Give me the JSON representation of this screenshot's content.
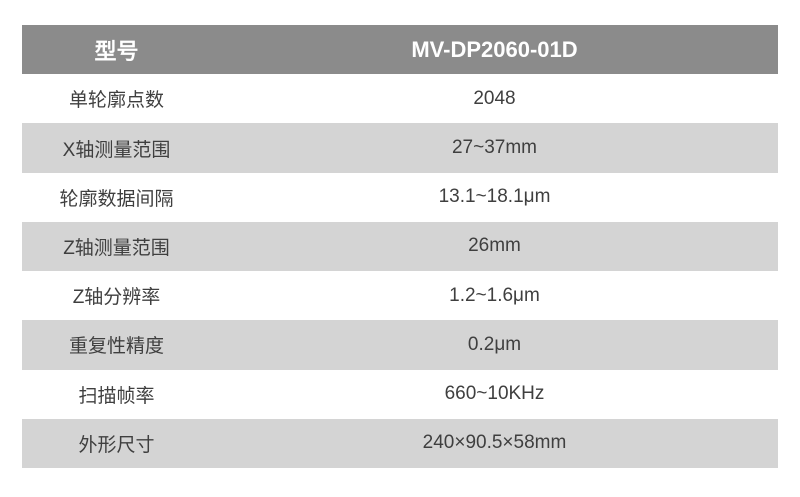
{
  "table": {
    "header": {
      "label": "型号",
      "value": "MV-DP2060-01D"
    },
    "rows": [
      {
        "label": "单轮廓点数",
        "value": "2048"
      },
      {
        "label": "X轴测量范围",
        "value": "27~37mm"
      },
      {
        "label": "轮廓数据间隔",
        "value": "13.1~18.1μm"
      },
      {
        "label": "Z轴测量范围",
        "value": "26mm"
      },
      {
        "label": "Z轴分辨率",
        "value": "1.2~1.6μm"
      },
      {
        "label": "重复性精度",
        "value": "0.2μm"
      },
      {
        "label": "扫描帧率",
        "value": "660~10KHz"
      },
      {
        "label": "外形尺寸",
        "value": "240×90.5×58mm"
      }
    ]
  },
  "colors": {
    "page_bg": "#ffffff",
    "header_bg": "#8b8b8b",
    "header_text": "#ffffff",
    "row_bg": "#ffffff",
    "row_alt_bg": "#d4d4d4",
    "text": "#3f3f3f"
  }
}
